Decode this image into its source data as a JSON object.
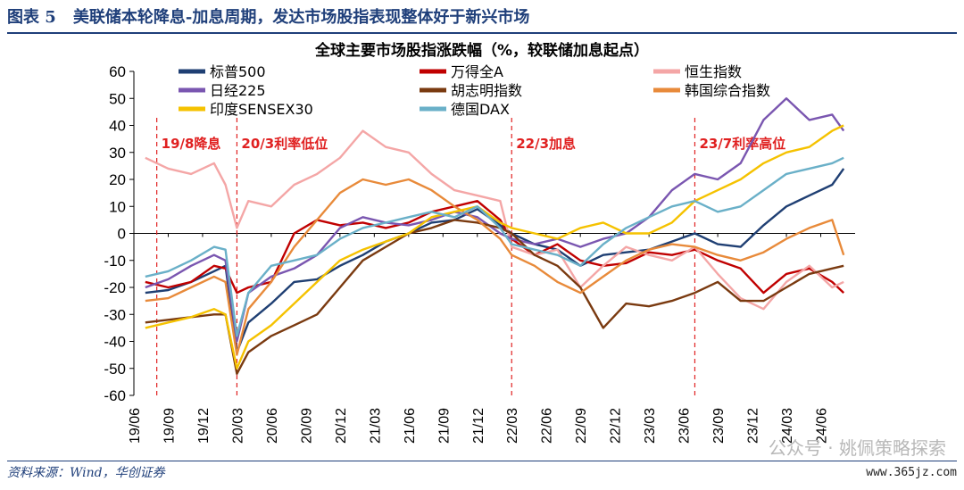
{
  "figure": {
    "label": "图表 5",
    "caption": "美联储本轮降息-加息周期，发达市场股指表现整体好于新兴市场",
    "source": "资料来源：Wind，华创证券",
    "watermark": "公众号 · 姚佩策略探索",
    "site": "www.365jz.com"
  },
  "chart_data": {
    "type": "line",
    "title": "全球主要市场股指涨跌幅（%，较联储加息起点）",
    "ylim": [
      -60,
      60
    ],
    "yticks": [
      -60,
      -50,
      -40,
      -30,
      -20,
      -10,
      0,
      10,
      20,
      30,
      40,
      50,
      60
    ],
    "xlim": [
      "2019-06",
      "2024-09"
    ],
    "xticks": [
      "19/06",
      "19/09",
      "19/12",
      "20/03",
      "20/06",
      "20/09",
      "20/12",
      "21/03",
      "21/06",
      "21/09",
      "21/12",
      "22/03",
      "22/06",
      "22/09",
      "22/12",
      "23/03",
      "23/06",
      "23/09",
      "23/12",
      "24/03",
      "24/06"
    ],
    "grid": false,
    "legend_position": "top",
    "x": [
      "2019-07",
      "2019-09",
      "2019-11",
      "2020-01",
      "2020-02",
      "2020-03",
      "2020-04",
      "2020-06",
      "2020-08",
      "2020-10",
      "2020-12",
      "2021-02",
      "2021-04",
      "2021-06",
      "2021-08",
      "2021-10",
      "2021-12",
      "2022-02",
      "2022-03",
      "2022-05",
      "2022-07",
      "2022-09",
      "2022-11",
      "2023-01",
      "2023-03",
      "2023-05",
      "2023-07",
      "2023-09",
      "2023-11",
      "2024-01",
      "2024-03",
      "2024-05",
      "2024-07",
      "2024-08"
    ],
    "series": [
      {
        "name": "标普500",
        "color": "#1f3f73",
        "values": [
          -22,
          -21,
          -18,
          -14,
          -12,
          -44,
          -33,
          -26,
          -18,
          -17,
          -12,
          -8,
          -3,
          0,
          4,
          5,
          9,
          3,
          0,
          -4,
          -6,
          -12,
          -8,
          -7,
          -6,
          -3,
          0,
          -4,
          -5,
          3,
          10,
          14,
          18,
          24
        ]
      },
      {
        "name": "万得全A",
        "color": "#c00000",
        "values": [
          -18,
          -20,
          -18,
          -12,
          -13,
          -22,
          -20,
          -18,
          0,
          5,
          3,
          4,
          2,
          4,
          8,
          10,
          12,
          5,
          -2,
          -8,
          -4,
          -10,
          -12,
          -11,
          -7,
          -8,
          -6,
          -10,
          -13,
          -22,
          -15,
          -13,
          -18,
          -22
        ]
      },
      {
        "name": "恒生指数",
        "color": "#f4a6a6",
        "values": [
          28,
          24,
          22,
          26,
          18,
          2,
          12,
          10,
          18,
          22,
          28,
          38,
          32,
          30,
          22,
          16,
          14,
          12,
          -5,
          -8,
          -6,
          -20,
          -12,
          -5,
          -8,
          -10,
          -5,
          -15,
          -24,
          -28,
          -18,
          -12,
          -20,
          -18
        ]
      },
      {
        "name": "日经225",
        "color": "#7a56b0",
        "values": [
          -20,
          -17,
          -12,
          -8,
          -10,
          -40,
          -22,
          -16,
          -13,
          -8,
          2,
          6,
          4,
          3,
          5,
          8,
          6,
          0,
          -2,
          -4,
          -2,
          -5,
          -2,
          0,
          6,
          16,
          22,
          20,
          26,
          42,
          50,
          42,
          44,
          38
        ]
      },
      {
        "name": "胡志明指数",
        "color": "#7a3a10",
        "values": [
          -33,
          -32,
          -31,
          -30,
          -30,
          -52,
          -44,
          -38,
          -34,
          -30,
          -20,
          -10,
          -5,
          0,
          2,
          5,
          4,
          2,
          0,
          -8,
          -12,
          -20,
          -35,
          -26,
          -27,
          -25,
          -22,
          -18,
          -25,
          -25,
          -20,
          -15,
          -13,
          -12
        ]
      },
      {
        "name": "韩国综合指数",
        "color": "#e88a3a",
        "values": [
          -25,
          -24,
          -20,
          -16,
          -18,
          -45,
          -28,
          -18,
          -5,
          5,
          15,
          20,
          18,
          20,
          16,
          10,
          5,
          -2,
          -8,
          -12,
          -18,
          -22,
          -16,
          -10,
          -6,
          -4,
          -5,
          -8,
          -10,
          -7,
          -2,
          2,
          5,
          -8
        ]
      },
      {
        "name": "印度SENSEX30",
        "color": "#f5c200",
        "values": [
          -35,
          -33,
          -31,
          -28,
          -30,
          -50,
          -40,
          -34,
          -26,
          -18,
          -10,
          -6,
          -3,
          0,
          6,
          8,
          10,
          4,
          2,
          0,
          -2,
          2,
          4,
          0,
          0,
          4,
          12,
          16,
          20,
          26,
          30,
          32,
          38,
          40
        ]
      },
      {
        "name": "德国DAX",
        "color": "#6ab0c8",
        "values": [
          -16,
          -14,
          -10,
          -5,
          -6,
          -38,
          -22,
          -12,
          -10,
          -8,
          -2,
          2,
          4,
          6,
          8,
          6,
          10,
          2,
          -4,
          -6,
          -8,
          -12,
          -4,
          2,
          6,
          10,
          12,
          8,
          10,
          16,
          22,
          24,
          26,
          28
        ]
      }
    ],
    "event_lines": [
      {
        "date": "2019-08",
        "label": "19/8降息"
      },
      {
        "date": "2020-03",
        "label": "20/3利率低位"
      },
      {
        "date": "2022-03",
        "label": "22/3加息"
      },
      {
        "date": "2023-07",
        "label": "23/7利率高位"
      }
    ]
  }
}
